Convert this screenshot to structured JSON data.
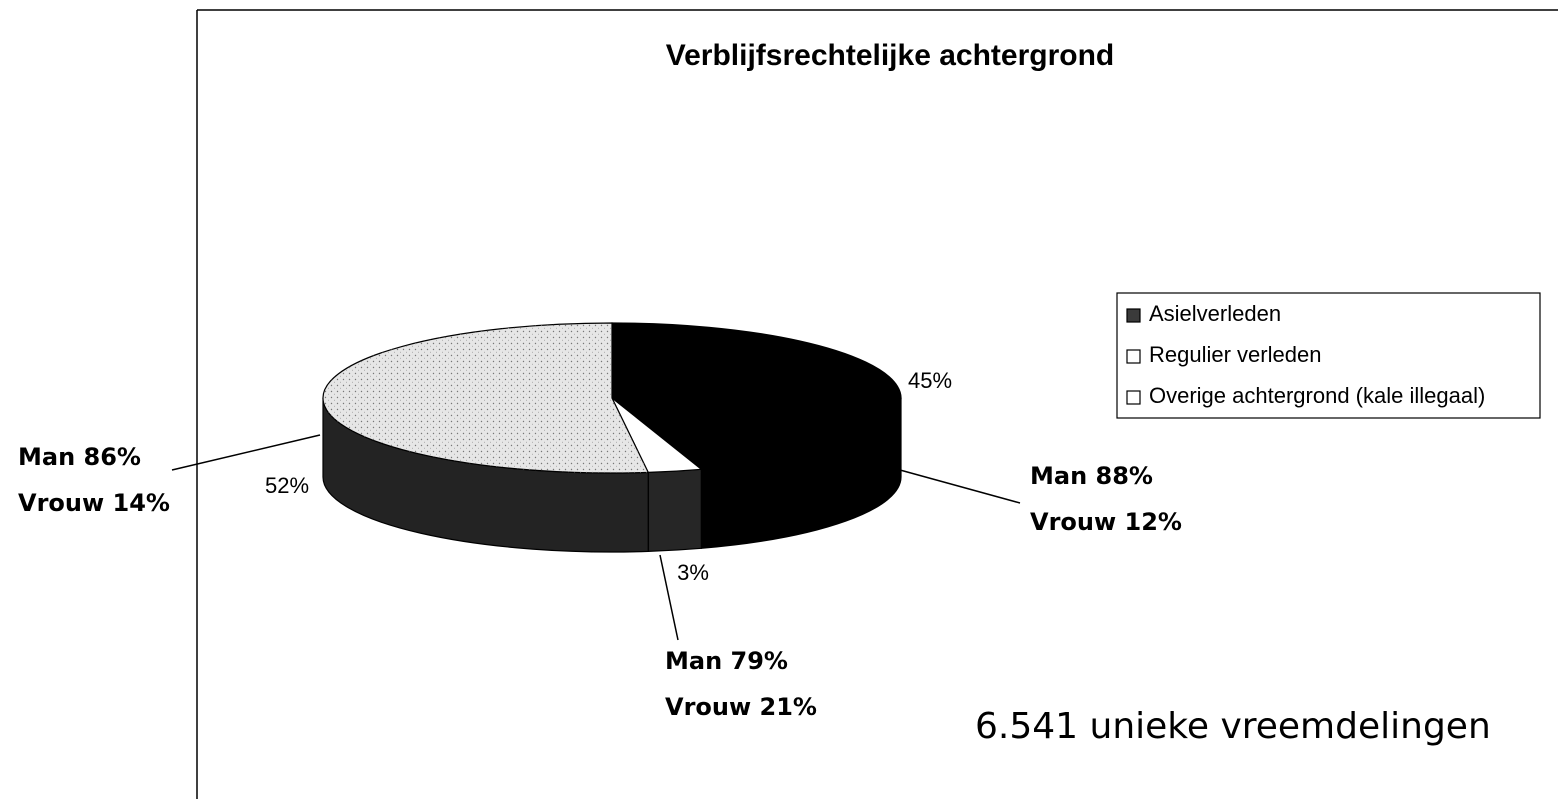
{
  "chart_data": {
    "type": "pie3d",
    "title": "Verblijfsrechtelijke achtergrond",
    "categories": [
      "Asielverleden",
      "Regulier verleden",
      "Overige achtergrond (kale illegaal)"
    ],
    "values": [
      45,
      3,
      52
    ],
    "value_labels": [
      "45%",
      "3%",
      "52%"
    ],
    "colors": [
      "#000000",
      "#ffffff",
      "#e6e6e6"
    ],
    "legend_colors": [
      "#3a3a3a",
      "#ffffff",
      "#ffffff"
    ],
    "annotations": [
      [
        "Man 88%",
        "Vrouw 12%"
      ],
      [
        "Man 79%",
        "Vrouw 21%"
      ],
      [
        "Man 86%",
        "Vrouw 14%"
      ]
    ],
    "legend": "right",
    "footnote": "6.541 unieke vreemdelingen"
  }
}
